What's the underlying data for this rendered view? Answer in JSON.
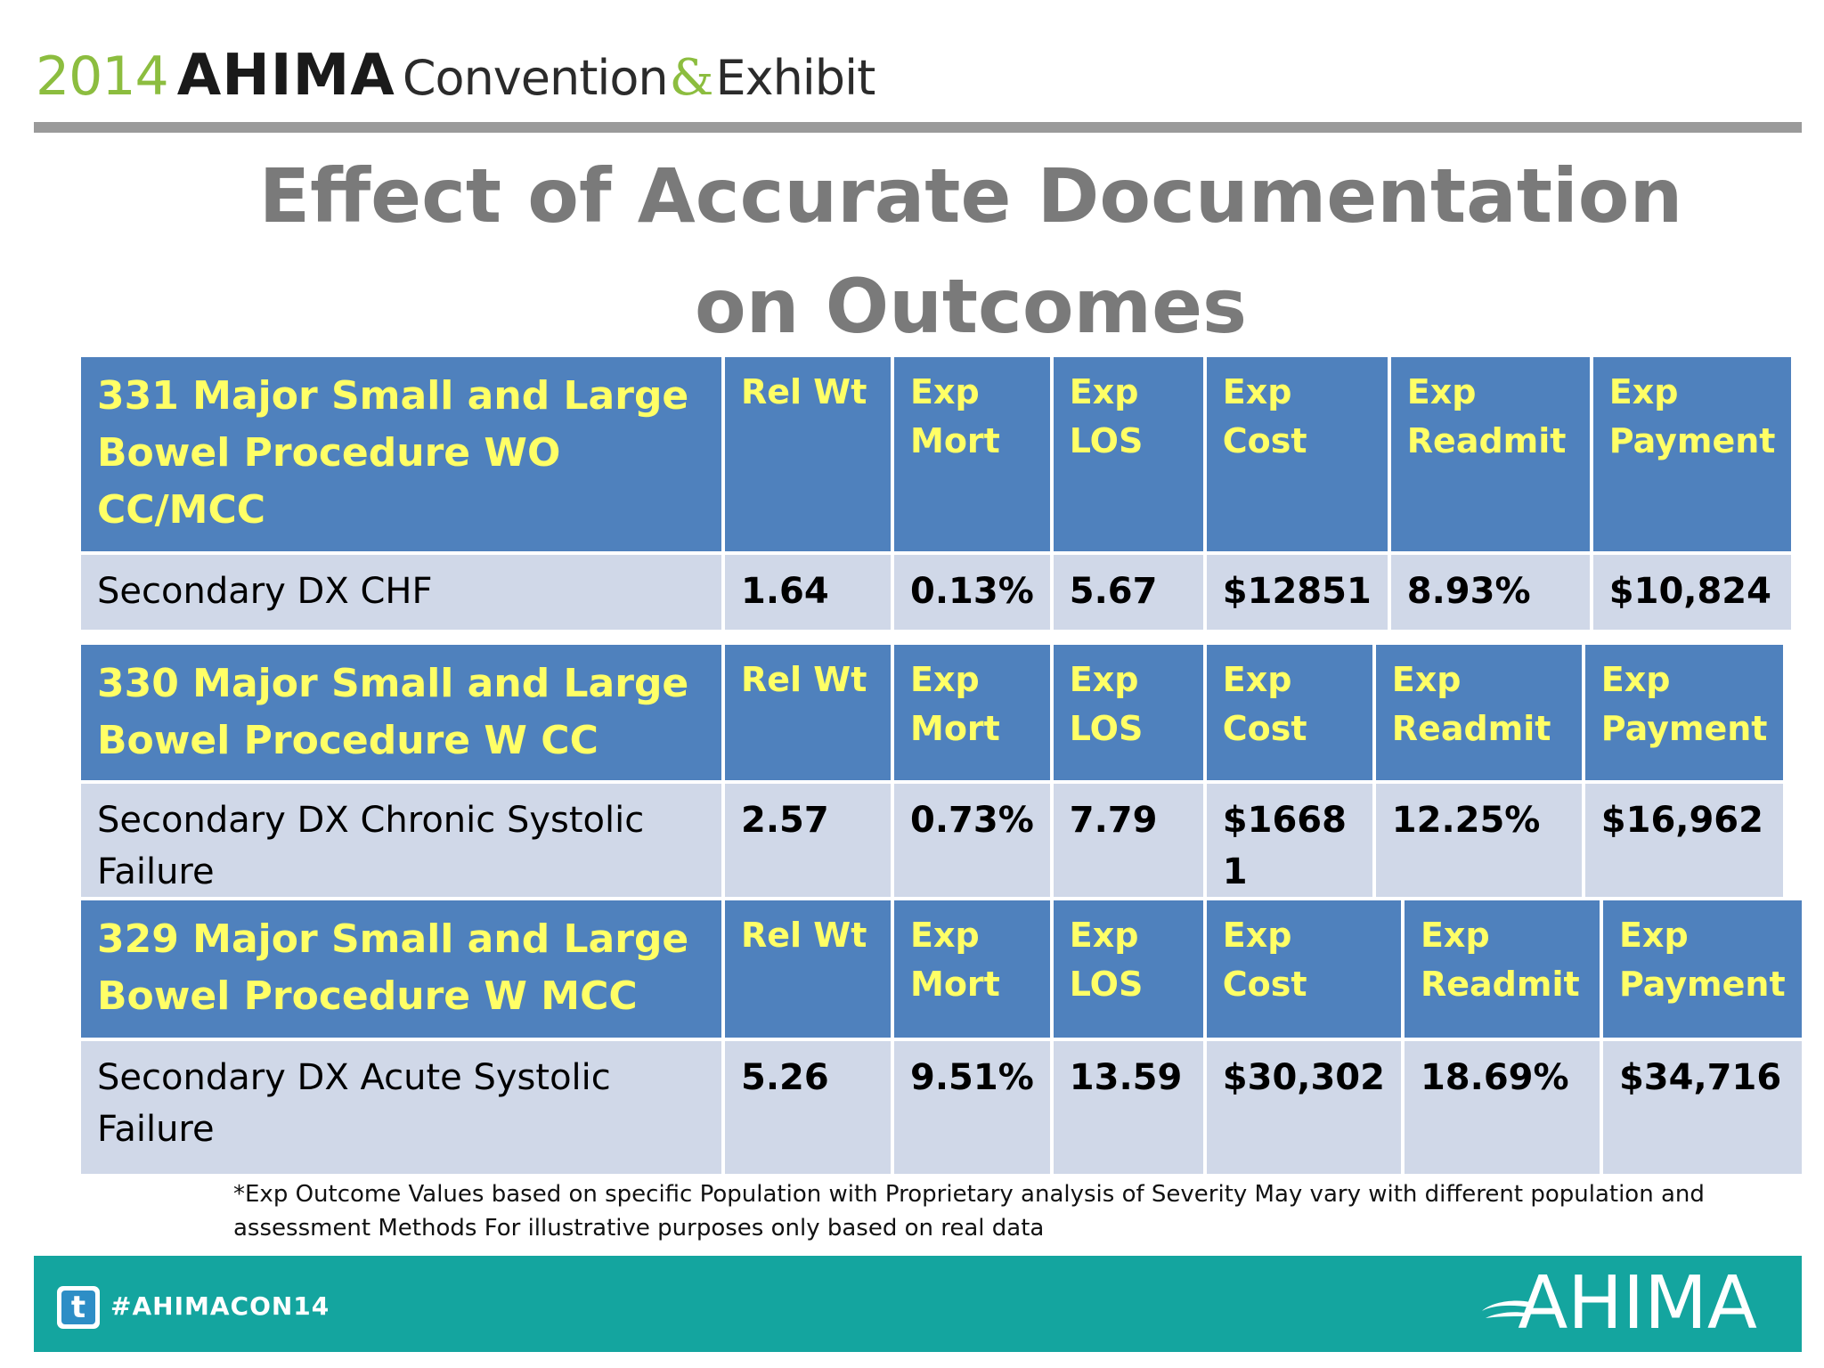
{
  "header": {
    "year": "2014",
    "org": "AHIMA",
    "convention": "Convention",
    "ampersand": "&",
    "exhibit": "Exhibit"
  },
  "title": {
    "line1": "Effect of Accurate Documentation",
    "line2": "on Outcomes"
  },
  "tables": [
    {
      "header": [
        "331 Major Small and Large Bowel Procedure WO CC/MCC",
        "Rel Wt",
        "Exp Mort",
        "Exp LOS",
        "Exp Cost",
        "Exp Readmit",
        "Exp Payment"
      ],
      "row": [
        "Secondary DX CHF",
        "1.64",
        "0.13%",
        "5.67",
        "$12851",
        "8.93%",
        "$10,824"
      ]
    },
    {
      "header": [
        "330 Major Small and Large Bowel Procedure  W CC",
        "Rel Wt",
        "Exp Mort",
        "Exp LOS",
        "Exp Cost",
        "Exp Readmit",
        "Exp Payment"
      ],
      "row": [
        "Secondary DX Chronic Systolic Failure",
        "2.57",
        "0.73%",
        "7.79",
        "$16681",
        "12.25%",
        "$16,962"
      ]
    },
    {
      "header": [
        "329 Major Small and Large Bowel Procedure  W MCC",
        "Rel Wt",
        "Exp Mort",
        "Exp LOS",
        "Exp Cost",
        "Exp Readmit",
        "Exp Payment"
      ],
      "row": [
        "Secondary DX Acute Systolic Failure",
        "5.26",
        "9.51%",
        "13.59",
        "$30,302",
        "18.69%",
        "$34,716"
      ]
    }
  ],
  "footnote": "*Exp Outcome Values based on specific Population with Proprietary analysis of Severity May vary with different population and assessment Methods  For illustrative purposes only based on real data",
  "footer": {
    "icon": "twitter-icon",
    "hashtag": "#AHIMACON14",
    "logo": "AHIMA"
  },
  "colors": {
    "header_cell": "#4f81bd",
    "header_text": "#ffff66",
    "data_cell": "#d0d8e8",
    "band": "#14a59f",
    "title": "#7a7a7a",
    "accent_green": "#8cbd3f"
  }
}
